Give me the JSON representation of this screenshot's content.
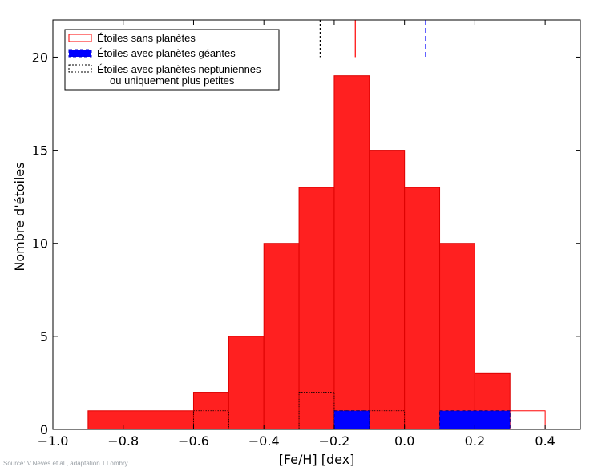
{
  "chart_data": {
    "type": "bar",
    "subtype": "histogram",
    "xlabel": "[Fe/H] [dex]",
    "ylabel": "Nombre d'étoiles",
    "xlim": [
      -1.0,
      0.5
    ],
    "ylim": [
      0,
      22
    ],
    "xticks": [
      -1.0,
      -0.8,
      -0.6,
      -0.4,
      -0.2,
      0.0,
      0.2,
      0.4
    ],
    "xtick_labels": [
      "−1.0",
      "−0.8",
      "−0.6",
      "−0.4",
      "−0.2",
      "0.0",
      "0.2",
      "0.4"
    ],
    "yticks": [
      0,
      5,
      10,
      15,
      20
    ],
    "ytick_labels": [
      "0",
      "5",
      "10",
      "15",
      "20"
    ],
    "grid": false,
    "legend_position": "top-left",
    "series": [
      {
        "name": "Étoiles sans planètes",
        "style": "filled-red",
        "color": "#ff2020",
        "bins": [
          {
            "x0": -0.9,
            "x1": -0.6,
            "count": 1
          },
          {
            "x0": -0.6,
            "x1": -0.5,
            "count": 2
          },
          {
            "x0": -0.5,
            "x1": -0.4,
            "count": 5
          },
          {
            "x0": -0.4,
            "x1": -0.3,
            "count": 10
          },
          {
            "x0": -0.3,
            "x1": -0.2,
            "count": 13
          },
          {
            "x0": -0.2,
            "x1": -0.1,
            "count": 19
          },
          {
            "x0": -0.1,
            "x1": 0.0,
            "count": 15
          },
          {
            "x0": 0.0,
            "x1": 0.1,
            "count": 13
          },
          {
            "x0": 0.1,
            "x1": 0.2,
            "count": 10
          },
          {
            "x0": 0.2,
            "x1": 0.3,
            "count": 3
          },
          {
            "x0": 0.3,
            "x1": 0.4,
            "count": 1
          }
        ],
        "mean": -0.14
      },
      {
        "name": "Étoiles avec planètes géantes",
        "style": "filled-blue-dashed",
        "color": "#0000ff",
        "bins": [
          {
            "x0": -0.2,
            "x1": -0.1,
            "count": 1
          },
          {
            "x0": 0.1,
            "x1": 0.3,
            "count": 1
          }
        ],
        "mean": 0.06
      },
      {
        "name": "Étoiles avec planètes neptuniennes\nou uniquement plus petites",
        "style": "dotted-outline",
        "color": "#000000",
        "bins": [
          {
            "x0": -0.6,
            "x1": -0.5,
            "count": 1
          },
          {
            "x0": -0.3,
            "x1": -0.2,
            "count": 2
          },
          {
            "x0": -0.2,
            "x1": -0.1,
            "count": 1
          },
          {
            "x0": -0.1,
            "x1": 0.0,
            "count": 1
          }
        ],
        "mean": -0.24
      }
    ],
    "legend": [
      "Étoiles sans planètes",
      "Étoiles avec planètes géantes",
      "Étoiles avec planètes neptuniennes",
      "ou uniquement plus petites"
    ]
  },
  "source_text": "Source: V.Neves et al., adaptation T.Lombry"
}
